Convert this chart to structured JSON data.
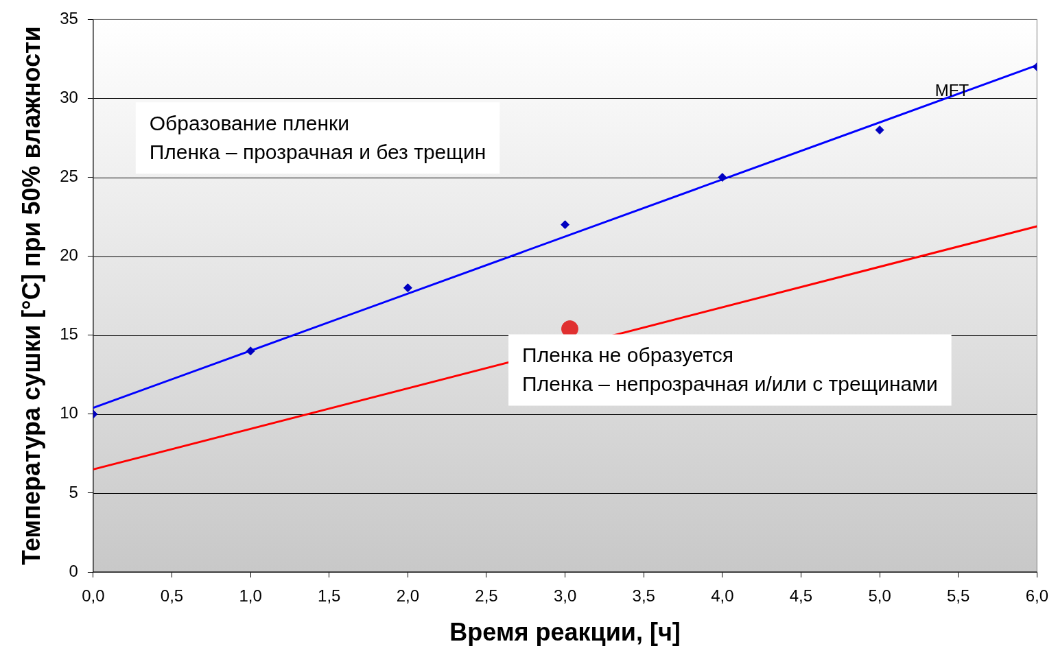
{
  "chart_data": {
    "type": "scatter",
    "xlabel": "Время реакции, [ч]",
    "ylabel": "Температура сушки [°C] при 50% влажности",
    "xlim": [
      0,
      6
    ],
    "ylim": [
      0,
      35
    ],
    "xticks": [
      {
        "value": 0,
        "label": "0,0"
      },
      {
        "value": 0.5,
        "label": "0,5"
      },
      {
        "value": 1,
        "label": "1,0"
      },
      {
        "value": 1.5,
        "label": "1,5"
      },
      {
        "value": 2,
        "label": "2,0"
      },
      {
        "value": 2.5,
        "label": "2,5"
      },
      {
        "value": 3,
        "label": "3,0"
      },
      {
        "value": 3.5,
        "label": "3,5"
      },
      {
        "value": 4,
        "label": "4,0"
      },
      {
        "value": 4.5,
        "label": "4,5"
      },
      {
        "value": 5,
        "label": "5,0"
      },
      {
        "value": 5.5,
        "label": "5,5"
      },
      {
        "value": 6,
        "label": "6,0"
      }
    ],
    "yticks": [
      0,
      5,
      10,
      15,
      20,
      25,
      30,
      35
    ],
    "grid": "y",
    "legend": false,
    "series": [
      {
        "type": "scatter",
        "color": "#0000c0",
        "marker": "diamond",
        "x": [
          0,
          1,
          2,
          3,
          4,
          5,
          6
        ],
        "values": [
          10,
          14,
          18,
          22,
          25,
          28,
          32
        ]
      },
      {
        "type": "line",
        "color": "#0000ff",
        "marker": "none",
        "x": [
          0,
          6
        ],
        "values": [
          10.4,
          32.1
        ]
      },
      {
        "type": "line",
        "color": "#ff0000",
        "marker": "none",
        "x": [
          0,
          6
        ],
        "values": [
          6.5,
          21.9
        ]
      },
      {
        "type": "scatter",
        "color": "#e03030",
        "marker": "circle",
        "x": [
          3.03
        ],
        "values": [
          15.4
        ]
      }
    ],
    "annotations": [
      "Образование пленки\nПленка – прозрачная и без трещин",
      "Пленка не образуется\nПленка – непрозрачная и/или с трещинами",
      "MFT"
    ]
  }
}
